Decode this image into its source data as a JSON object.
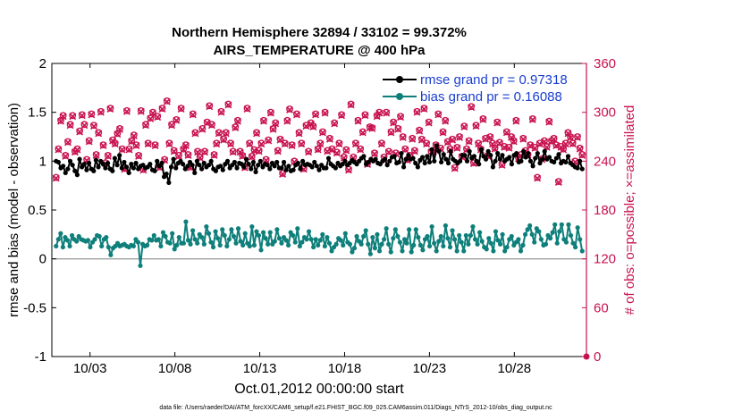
{
  "chart_data": {
    "type": "line",
    "title": "Northern Hemisphere 32894 / 33102 = 99.372%",
    "subtitle": "AIRS_TEMPERATURE @ 400 hPa",
    "xlabel": "Oct.01,2012 00:00:00 start",
    "ylabel_left": "rmse and bias (model - observation)",
    "ylabel_right": "# of obs: o=possible; ×=assimilated",
    "footer": "data file: /Users/raeder/DAI/ATM_forcXX/CAM6_setup/f.e21.FHIST_BGC.f09_025.CAM6assim.011/Diags_NTrS_2012-10/obs_diag_output.nc",
    "x_ticks": [
      "10/03",
      "10/08",
      "10/13",
      "10/18",
      "10/23",
      "10/28"
    ],
    "x_tick_positions": [
      3,
      8,
      13,
      18,
      23,
      28
    ],
    "xlim": [
      0.75,
      32.25
    ],
    "ylim_left": [
      -1,
      2
    ],
    "yticks_left": [
      "2",
      "1.5",
      "1",
      "0.5",
      "0",
      "-0.5",
      "-1"
    ],
    "ylim_right": [
      0,
      360
    ],
    "yticks_right": [
      "360",
      "300",
      "240",
      "180",
      "120",
      "60",
      "0"
    ],
    "colors": {
      "rmse": "#000000",
      "bias": "#0e7f7a",
      "obs": "#c8134f",
      "legend_text": "#1a3fd0",
      "zero_line": "#a0a0a0"
    },
    "legend": {
      "placement": "top-right",
      "entries": [
        "rmse grand pr = 0.97318",
        "bias grand pr = 0.16088"
      ]
    },
    "series": [
      {
        "name": "rmse",
        "axis": "left",
        "values": [
          1.0,
          0.99,
          0.93,
          0.95,
          0.88,
          0.92,
          1.0,
          0.96,
          0.9,
          0.86,
          1.02,
          0.94,
          0.97,
          0.91,
          0.98,
          0.92,
          0.9,
          1.01,
          0.94,
          1.0,
          0.97,
          0.93,
          0.98,
          0.92,
          0.9,
          1.03,
          0.96,
          1.06,
          0.93,
          0.99,
          0.94,
          0.88,
          0.97,
          0.93,
          0.98,
          0.92,
          0.95,
          0.96,
          0.93,
          0.94,
          0.97,
          0.91,
          0.9,
          1.0,
          0.95,
          0.98,
          0.84,
          0.87,
          0.78,
          0.94,
          1.02,
          0.93,
          0.98,
          1.0,
          0.97,
          0.92,
          0.95,
          0.99,
          0.96,
          0.88,
          1.0,
          0.96,
          0.92,
          0.98,
          0.94,
          0.96,
          1.0,
          0.92,
          0.9,
          0.94,
          0.95,
          0.91,
          0.97,
          1.0,
          0.93,
          0.96,
          0.99,
          0.93,
          0.98,
          0.97,
          0.94,
          1.02,
          0.97,
          0.92,
          0.99,
          0.89,
          0.96,
          1.0,
          0.94,
          0.97,
          0.96,
          0.92,
          0.98,
          0.95,
          0.99,
          0.93,
          0.93,
          0.99,
          0.91,
          0.95,
          0.9,
          0.91,
          0.96,
          0.98,
          0.92,
          1.0,
          0.96,
          0.97,
          0.96,
          0.94,
          0.99,
          0.95,
          0.91,
          0.96,
          0.93,
          0.93,
          1.03,
          0.97,
          0.95,
          0.93,
          0.98,
          0.95,
          0.97,
          1.0,
          0.96,
          0.98,
          1.01,
          0.99,
          0.97,
          1.0,
          1.03,
          1.05,
          0.97,
          0.99,
          1.02,
          1.0,
          1.02,
          0.98,
          0.97,
          1.0,
          1.02,
          0.96,
          1.0,
          1.04,
          1.05,
          0.98,
          0.99,
          1.08,
          0.94,
          1.02,
          1.06,
          1.02,
          1.03,
          0.98,
          0.94,
          1.01,
          1.04,
          0.98,
          1.05,
          0.99,
          1.12,
          1.0,
          1.16,
          1.1,
          0.99,
          1.07,
          1.02,
          0.98,
          1.1,
          1.02,
          1.0,
          0.98,
          1.0,
          1.06,
          1.06,
          1.0,
          1.1,
          1.03,
          1.05,
          1.0,
          0.97,
          1.12,
          1.05,
          1.02,
          1.1,
          1.06,
          0.94,
          1.0,
          1.08,
          1.02,
          1.06,
          1.0,
          1.02,
          1.04,
          0.97,
          1.06,
          1.08,
          0.99,
          1.0,
          1.1,
          1.04,
          1.08,
          1.0,
          0.95,
          1.03,
          1.08,
          0.98,
          1.02,
          1.1,
          1.02,
          1.04,
          1.0,
          0.99,
          1.03,
          1.07,
          0.98,
          1.0,
          0.99,
          1.05,
          0.98,
          0.96,
          0.94,
          0.93,
          1.0,
          0.92
        ]
      },
      {
        "name": "bias",
        "axis": "left",
        "values": [
          0.13,
          0.2,
          0.26,
          0.12,
          0.22,
          0.19,
          0.13,
          0.24,
          0.2,
          0.18,
          0.23,
          0.2,
          0.19,
          0.18,
          0.19,
          0.12,
          0.17,
          0.2,
          0.24,
          0.23,
          0.13,
          0.2,
          0.22,
          0.12,
          0.04,
          0.11,
          0.13,
          0.16,
          0.13,
          0.14,
          0.15,
          0.13,
          0.12,
          0.14,
          0.13,
          0.2,
          0.17,
          -0.07,
          0.15,
          0.13,
          0.14,
          0.2,
          0.19,
          0.24,
          0.19,
          0.2,
          0.13,
          0.27,
          0.23,
          0.17,
          0.16,
          0.26,
          0.1,
          0.14,
          0.22,
          0.16,
          0.16,
          0.38,
          0.19,
          0.15,
          0.29,
          0.2,
          0.16,
          0.25,
          0.22,
          0.15,
          0.33,
          0.26,
          0.17,
          0.12,
          0.28,
          0.21,
          0.14,
          0.3,
          0.24,
          0.13,
          0.2,
          0.3,
          0.23,
          0.16,
          0.31,
          0.18,
          0.14,
          0.26,
          0.16,
          0.13,
          0.33,
          0.14,
          0.28,
          0.24,
          0.09,
          0.27,
          0.21,
          0.15,
          0.27,
          0.15,
          0.18,
          0.3,
          0.21,
          0.16,
          0.22,
          0.19,
          0.14,
          0.27,
          0.24,
          0.17,
          0.31,
          0.13,
          0.17,
          0.22,
          0.2,
          0.28,
          0.2,
          0.12,
          0.2,
          0.14,
          0.19,
          0.25,
          0.13,
          0.22,
          0.16,
          0.08,
          0.12,
          0.15,
          0.21,
          0.19,
          0.14,
          0.26,
          0.17,
          0.15,
          0.07,
          0.11,
          0.23,
          0.18,
          0.15,
          0.23,
          0.29,
          0.15,
          0.05,
          0.22,
          0.11,
          0.25,
          0.08,
          0.15,
          0.2,
          0.31,
          0.15,
          0.07,
          0.21,
          0.3,
          0.23,
          0.17,
          0.08,
          0.2,
          0.16,
          0.3,
          0.07,
          0.14,
          0.3,
          0.22,
          0.14,
          0.09,
          0.2,
          0.23,
          0.13,
          0.33,
          0.16,
          0.08,
          0.18,
          0.23,
          0.13,
          0.34,
          0.21,
          0.12,
          0.29,
          0.2,
          0.08,
          0.24,
          0.17,
          0.08,
          0.24,
          0.15,
          0.24,
          0.33,
          0.2,
          0.15,
          0.27,
          0.18,
          0.12,
          0.1,
          0.21,
          0.16,
          0.08,
          0.28,
          0.19,
          0.15,
          0.25,
          0.08,
          0.12,
          0.2,
          0.23,
          0.14,
          0.17,
          0.2,
          0.08,
          0.14,
          0.25,
          0.3,
          0.34,
          0.25,
          0.17,
          0.31,
          0.28,
          0.2,
          0.14,
          0.15,
          0.24,
          0.21,
          0.27,
          0.35,
          0.16,
          0.28,
          0.35,
          0.2,
          0.17,
          0.35,
          0.24,
          0.16,
          0.12,
          0.32,
          0.2,
          0.08
        ]
      },
      {
        "name": "possible",
        "axis": "right",
        "marker": "o",
        "values": [
          220,
          255,
          290,
          296,
          247,
          264,
          285,
          296,
          252,
          255,
          277,
          297,
          285,
          242,
          265,
          298,
          284,
          248,
          275,
          301,
          260,
          238,
          247,
          305,
          266,
          262,
          274,
          280,
          255,
          231,
          302,
          255,
          265,
          272,
          260,
          247,
          302,
          230,
          285,
          262,
          293,
          300,
          260,
          295,
          233,
          305,
          242,
          314,
          262,
          285,
          253,
          291,
          247,
          305,
          255,
          260,
          248,
          233,
          298,
          275,
          252,
          245,
          280,
          252,
          288,
          308,
          285,
          248,
          262,
          275,
          301,
          267,
          275,
          310,
          262,
          252,
          282,
          290,
          252,
          247,
          233,
          305,
          262,
          246,
          254,
          275,
          253,
          262,
          290,
          242,
          266,
          300,
          280,
          287,
          253,
          267,
          225,
          262,
          290,
          304,
          260,
          240,
          298,
          275,
          262,
          231,
          284,
          252,
          287,
          283,
          298,
          255,
          262,
          276,
          300,
          253,
          268,
          255,
          287,
          251,
          262,
          297,
          245,
          254,
          230,
          310,
          245,
          262,
          290,
          255,
          276,
          297,
          237,
          282,
          281,
          250,
          296,
          300,
          262,
          245,
          300,
          252,
          276,
          288,
          250,
          280,
          295,
          270,
          255,
          242,
          247,
          268,
          253,
          301,
          278,
          267,
          305,
          262,
          288,
          252,
          253,
          260,
          298,
          256,
          276,
          290,
          264,
          255,
          267,
          232,
          257,
          270,
          246,
          283,
          255,
          265,
          307,
          238,
          284,
          262,
          255,
          292,
          268,
          247,
          270,
          262,
          256,
          288,
          263,
          236,
          258,
          276,
          257,
          270,
          265,
          290,
          244,
          248,
          268,
          253,
          248,
          260,
          292,
          257,
          220,
          262,
          243,
          265,
          258,
          289,
          265,
          268,
          260,
          215,
          258,
          255,
          262,
          275,
          270,
          262,
          240,
          270,
          256,
          248
        ]
      },
      {
        "name": "assimilated",
        "axis": "right",
        "marker": "x",
        "values": [
          219,
          254,
          289,
          295,
          246,
          263,
          284,
          295,
          251,
          254,
          276,
          296,
          284,
          241,
          264,
          297,
          283,
          247,
          274,
          300,
          259,
          237,
          246,
          304,
          265,
          261,
          273,
          279,
          254,
          230,
          301,
          254,
          264,
          271,
          259,
          246,
          301,
          229,
          284,
          261,
          292,
          299,
          259,
          294,
          232,
          304,
          241,
          313,
          261,
          284,
          252,
          290,
          246,
          304,
          254,
          259,
          247,
          232,
          297,
          274,
          251,
          244,
          279,
          251,
          287,
          307,
          284,
          247,
          261,
          274,
          300,
          266,
          274,
          309,
          261,
          251,
          281,
          289,
          251,
          246,
          232,
          304,
          261,
          245,
          253,
          274,
          252,
          261,
          289,
          241,
          265,
          299,
          279,
          286,
          252,
          266,
          224,
          261,
          289,
          303,
          259,
          239,
          297,
          274,
          261,
          230,
          283,
          251,
          286,
          282,
          297,
          254,
          261,
          275,
          299,
          252,
          267,
          254,
          286,
          250,
          261,
          296,
          244,
          253,
          229,
          309,
          244,
          261,
          289,
          254,
          275,
          296,
          236,
          281,
          280,
          249,
          295,
          299,
          261,
          244,
          299,
          251,
          275,
          287,
          249,
          279,
          294,
          269,
          254,
          241,
          246,
          267,
          252,
          300,
          277,
          266,
          304,
          261,
          287,
          251,
          252,
          259,
          297,
          255,
          275,
          289,
          263,
          254,
          266,
          231,
          256,
          269,
          245,
          282,
          254,
          264,
          306,
          237,
          283,
          261,
          254,
          291,
          267,
          246,
          269,
          261,
          255,
          287,
          262,
          235,
          257,
          275,
          256,
          269,
          264,
          289,
          243,
          247,
          267,
          252,
          247,
          259,
          291,
          256,
          219,
          261,
          242,
          264,
          257,
          288,
          264,
          267,
          259,
          214,
          257,
          254,
          261,
          274,
          269,
          261,
          239,
          269,
          255,
          247
        ]
      }
    ]
  }
}
